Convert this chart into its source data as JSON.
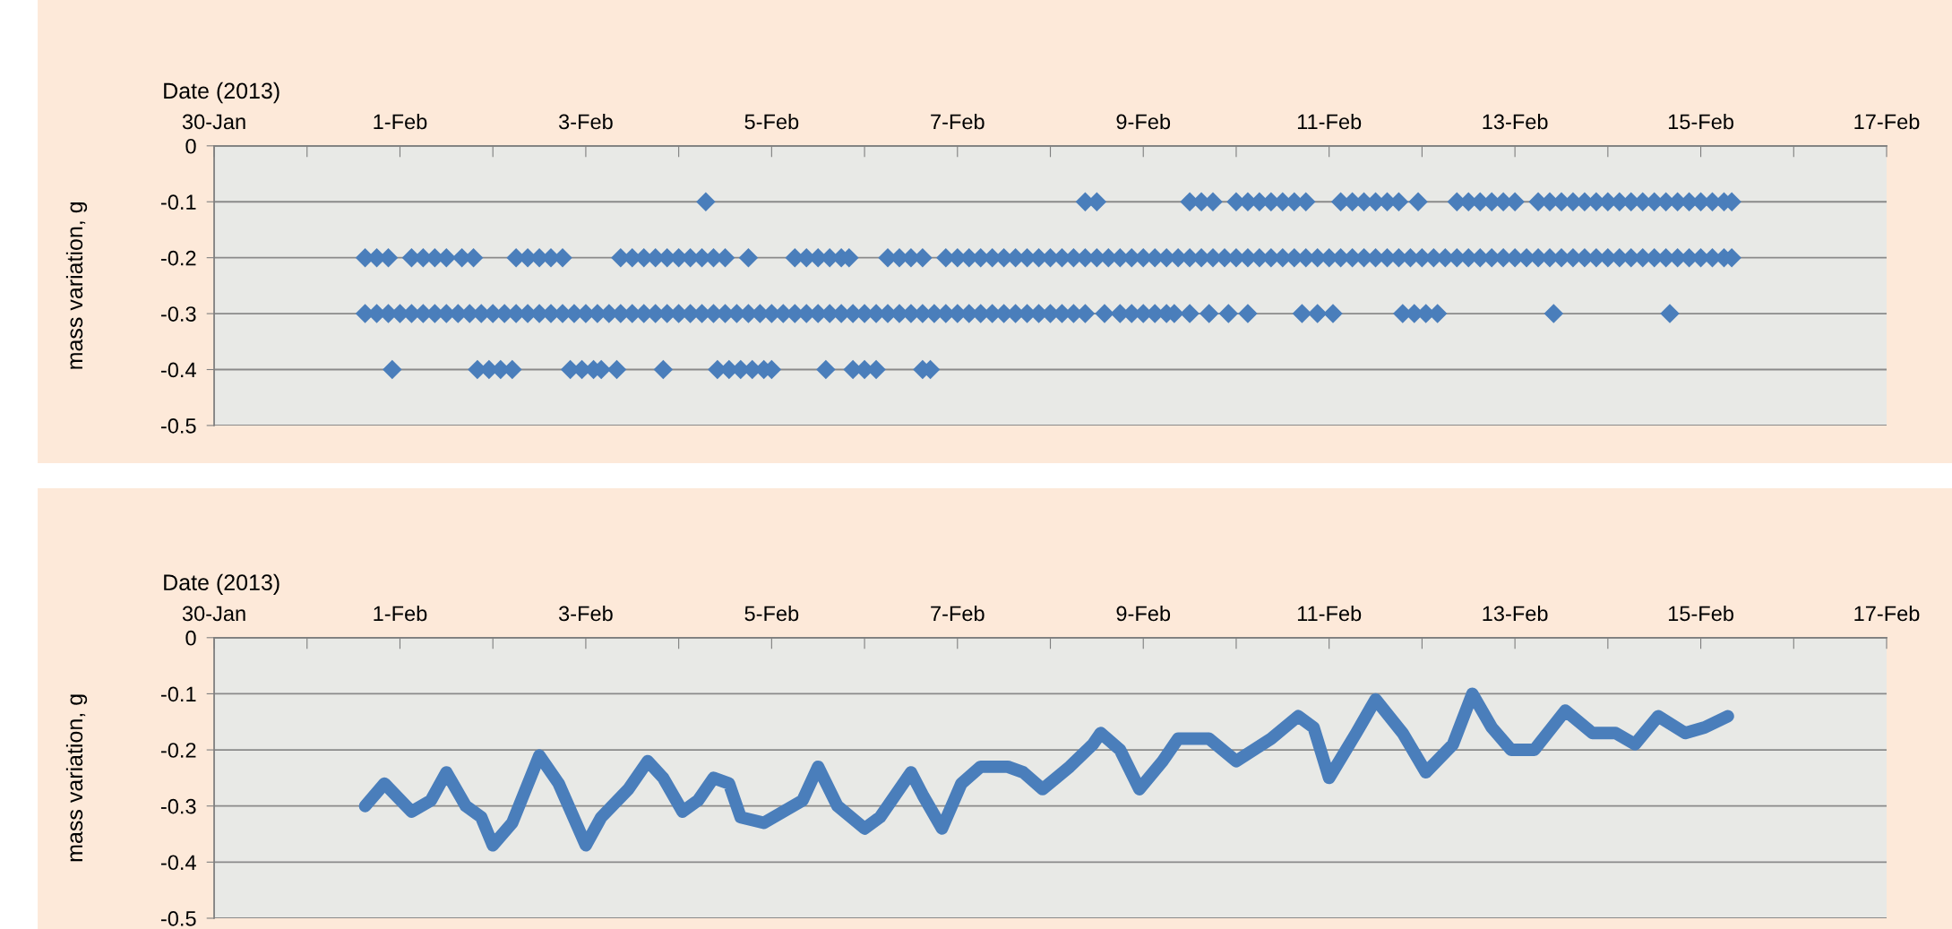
{
  "chart_data": [
    {
      "type": "scatter",
      "xlabel": "Date (2013)",
      "ylabel": "mass variation, g",
      "marker": "diamond",
      "grid": "y",
      "xlim": [
        "2013-01-30",
        "2013-02-17"
      ],
      "ylim": [
        -0.5,
        0
      ],
      "yticks": [
        0,
        -0.1,
        -0.2,
        -0.3,
        -0.4,
        -0.5
      ],
      "xticks": [
        {
          "value": "2013-01-30",
          "label": "30-Jan"
        },
        {
          "value": "2013-01-31",
          "label": null
        },
        {
          "value": "2013-02-01",
          "label": "1-Feb"
        },
        {
          "value": "2013-02-02",
          "label": null
        },
        {
          "value": "2013-02-03",
          "label": "3-Feb"
        },
        {
          "value": "2013-02-04",
          "label": null
        },
        {
          "value": "2013-02-05",
          "label": "5-Feb"
        },
        {
          "value": "2013-02-06",
          "label": null
        },
        {
          "value": "2013-02-07",
          "label": "7-Feb"
        },
        {
          "value": "2013-02-08",
          "label": null
        },
        {
          "value": "2013-02-09",
          "label": "9-Feb"
        },
        {
          "value": "2013-02-10",
          "label": null
        },
        {
          "value": "2013-02-11",
          "label": "11-Feb"
        },
        {
          "value": "2013-02-12",
          "label": null
        },
        {
          "value": "2013-02-13",
          "label": "13-Feb"
        },
        {
          "value": "2013-02-14",
          "label": null
        },
        {
          "value": "2013-02-15",
          "label": "15-Feb"
        },
        {
          "value": "2013-02-16",
          "label": null
        },
        {
          "value": "2013-02-17",
          "label": "17-Feb"
        }
      ],
      "series": [
        {
          "color": "#4a7ebb",
          "x": [
            "2013-01-31T15:00",
            "2013-01-31T18:00",
            "2013-01-31T21:00",
            "2013-02-01T00:00",
            "2013-02-01T03:00",
            "2013-02-01T06:00",
            "2013-02-01T09:00",
            "2013-02-01T12:00",
            "2013-02-01T15:00",
            "2013-02-01T18:00",
            "2013-02-01T21:00",
            "2013-02-02T00:00",
            "2013-02-02T03:00",
            "2013-02-02T06:00",
            "2013-02-02T09:00",
            "2013-02-02T12:00",
            "2013-02-02T15:00",
            "2013-02-02T18:00",
            "2013-02-02T21:00",
            "2013-02-03T00:00",
            "2013-02-03T03:00",
            "2013-02-03T06:00",
            "2013-02-03T09:00",
            "2013-02-03T12:00",
            "2013-02-03T15:00",
            "2013-02-03T18:00",
            "2013-02-03T21:00",
            "2013-02-04T00:00",
            "2013-02-04T03:00",
            "2013-02-04T06:00",
            "2013-02-04T09:00",
            "2013-02-04T12:00",
            "2013-02-04T15:00",
            "2013-02-04T18:00",
            "2013-02-04T21:00",
            "2013-02-05T00:00",
            "2013-02-05T03:00",
            "2013-02-05T06:00",
            "2013-02-05T09:00",
            "2013-02-05T12:00",
            "2013-02-05T15:00",
            "2013-02-05T18:00",
            "2013-02-05T21:00",
            "2013-02-06T00:00",
            "2013-02-06T03:00",
            "2013-02-06T06:00",
            "2013-02-06T09:00",
            "2013-02-06T12:00",
            "2013-02-06T15:00",
            "2013-02-06T18:00",
            "2013-02-06T21:00",
            "2013-02-07T00:00",
            "2013-02-07T03:00",
            "2013-02-07T06:00",
            "2013-02-07T09:00",
            "2013-02-07T12:00",
            "2013-02-07T15:00",
            "2013-02-07T18:00",
            "2013-02-07T21:00",
            "2013-02-08T00:00",
            "2013-02-08T03:00",
            "2013-02-08T06:00",
            "2013-02-08T09:00",
            "2013-02-08T14:00",
            "2013-02-08T18:00",
            "2013-02-08T21:00",
            "2013-02-09T00:00",
            "2013-02-09T03:00",
            "2013-02-09T06:00",
            "2013-02-09T08:00",
            "2013-02-09T12:00",
            "2013-02-09T17:00",
            "2013-02-09T22:00",
            "2013-02-10T03:00",
            "2013-02-10T17:00",
            "2013-02-10T21:00",
            "2013-02-11T01:00",
            "2013-02-11T19:00",
            "2013-02-11T22:00",
            "2013-02-12T01:00",
            "2013-02-12T04:00",
            "2013-02-13T10:00",
            "2013-02-14T16:00"
          ],
          "values": [
            -0.3,
            -0.3,
            -0.3,
            -0.3,
            -0.3,
            -0.3,
            -0.3,
            -0.3,
            -0.3,
            -0.3,
            -0.3,
            -0.3,
            -0.3,
            -0.3,
            -0.3,
            -0.3,
            -0.3,
            -0.3,
            -0.3,
            -0.3,
            -0.3,
            -0.3,
            -0.3,
            -0.3,
            -0.3,
            -0.3,
            -0.3,
            -0.3,
            -0.3,
            -0.3,
            -0.3,
            -0.3,
            -0.3,
            -0.3,
            -0.3,
            -0.3,
            -0.3,
            -0.3,
            -0.3,
            -0.3,
            -0.3,
            -0.3,
            -0.3,
            -0.3,
            -0.3,
            -0.3,
            -0.3,
            -0.3,
            -0.3,
            -0.3,
            -0.3,
            -0.3,
            -0.3,
            -0.3,
            -0.3,
            -0.3,
            -0.3,
            -0.3,
            -0.3,
            -0.3,
            -0.3,
            -0.3,
            -0.3,
            -0.3,
            -0.3,
            -0.3,
            -0.3,
            -0.3,
            -0.3,
            -0.3,
            -0.3,
            -0.3,
            -0.3,
            -0.3,
            -0.3,
            -0.3,
            -0.3,
            -0.3,
            -0.3,
            -0.3,
            -0.3,
            -0.3,
            -0.3
          ]
        },
        {
          "color": "#4a7ebb",
          "x": [
            "2013-01-31T15:00",
            "2013-01-31T18:00",
            "2013-01-31T21:00",
            "2013-02-01T03:00",
            "2013-02-01T06:00",
            "2013-02-01T09:00",
            "2013-02-01T12:00",
            "2013-02-01T16:00",
            "2013-02-01T19:00",
            "2013-02-02T06:00",
            "2013-02-02T09:00",
            "2013-02-02T12:00",
            "2013-02-02T15:00",
            "2013-02-02T18:00",
            "2013-02-03T09:00",
            "2013-02-03T12:00",
            "2013-02-03T15:00",
            "2013-02-03T18:00",
            "2013-02-03T21:00",
            "2013-02-04T00:00",
            "2013-02-04T03:00",
            "2013-02-04T06:00",
            "2013-02-04T09:00",
            "2013-02-04T12:00",
            "2013-02-04T18:00",
            "2013-02-05T06:00",
            "2013-02-05T09:00",
            "2013-02-05T12:00",
            "2013-02-05T15:00",
            "2013-02-05T18:00",
            "2013-02-05T20:00",
            "2013-02-06T06:00",
            "2013-02-06T09:00",
            "2013-02-06T12:00",
            "2013-02-06T15:00",
            "2013-02-06T21:00",
            "2013-02-07T00:00",
            "2013-02-07T03:00",
            "2013-02-07T06:00",
            "2013-02-07T09:00",
            "2013-02-07T12:00",
            "2013-02-07T15:00",
            "2013-02-07T18:00",
            "2013-02-07T21:00",
            "2013-02-08T00:00",
            "2013-02-08T03:00",
            "2013-02-08T06:00",
            "2013-02-08T09:00",
            "2013-02-08T12:00",
            "2013-02-08T15:00",
            "2013-02-08T18:00",
            "2013-02-08T21:00",
            "2013-02-09T00:00",
            "2013-02-09T03:00",
            "2013-02-09T06:00",
            "2013-02-09T09:00",
            "2013-02-09T12:00",
            "2013-02-09T15:00",
            "2013-02-09T18:00",
            "2013-02-09T21:00",
            "2013-02-10T00:00",
            "2013-02-10T03:00",
            "2013-02-10T06:00",
            "2013-02-10T09:00",
            "2013-02-10T12:00",
            "2013-02-10T15:00",
            "2013-02-10T18:00",
            "2013-02-10T21:00",
            "2013-02-11T00:00",
            "2013-02-11T03:00",
            "2013-02-11T06:00",
            "2013-02-11T09:00",
            "2013-02-11T12:00",
            "2013-02-11T15:00",
            "2013-02-11T18:00",
            "2013-02-11T21:00",
            "2013-02-12T00:00",
            "2013-02-12T03:00",
            "2013-02-12T06:00",
            "2013-02-12T09:00",
            "2013-02-12T12:00",
            "2013-02-12T15:00",
            "2013-02-12T18:00",
            "2013-02-12T21:00",
            "2013-02-13T00:00",
            "2013-02-13T03:00",
            "2013-02-13T06:00",
            "2013-02-13T09:00",
            "2013-02-13T12:00",
            "2013-02-13T15:00",
            "2013-02-13T18:00",
            "2013-02-13T21:00",
            "2013-02-14T00:00",
            "2013-02-14T03:00",
            "2013-02-14T06:00",
            "2013-02-14T09:00",
            "2013-02-14T12:00",
            "2013-02-14T15:00",
            "2013-02-14T18:00",
            "2013-02-14T21:00",
            "2013-02-15T00:00",
            "2013-02-15T03:00",
            "2013-02-15T06:00",
            "2013-02-15T08:00"
          ],
          "values": [
            -0.2,
            -0.2,
            -0.2,
            -0.2,
            -0.2,
            -0.2,
            -0.2,
            -0.2,
            -0.2,
            -0.2,
            -0.2,
            -0.2,
            -0.2,
            -0.2,
            -0.2,
            -0.2,
            -0.2,
            -0.2,
            -0.2,
            -0.2,
            -0.2,
            -0.2,
            -0.2,
            -0.2,
            -0.2,
            -0.2,
            -0.2,
            -0.2,
            -0.2,
            -0.2,
            -0.2,
            -0.2,
            -0.2,
            -0.2,
            -0.2,
            -0.2,
            -0.2,
            -0.2,
            -0.2,
            -0.2,
            -0.2,
            -0.2,
            -0.2,
            -0.2,
            -0.2,
            -0.2,
            -0.2,
            -0.2,
            -0.2,
            -0.2,
            -0.2,
            -0.2,
            -0.2,
            -0.2,
            -0.2,
            -0.2,
            -0.2,
            -0.2,
            -0.2,
            -0.2,
            -0.2,
            -0.2,
            -0.2,
            -0.2,
            -0.2,
            -0.2,
            -0.2,
            -0.2,
            -0.2,
            -0.2,
            -0.2,
            -0.2,
            -0.2,
            -0.2,
            -0.2,
            -0.2,
            -0.2,
            -0.2,
            -0.2,
            -0.2,
            -0.2,
            -0.2,
            -0.2,
            -0.2,
            -0.2,
            -0.2,
            -0.2,
            -0.2,
            -0.2,
            -0.2,
            -0.2,
            -0.2,
            -0.2,
            -0.2,
            -0.2,
            -0.2,
            -0.2,
            -0.2,
            -0.2,
            -0.2,
            -0.2,
            -0.2,
            -0.2,
            -0.2
          ]
        },
        {
          "color": "#4a7ebb",
          "x": [
            "2013-02-04T07:00",
            "2013-02-08T09:00",
            "2013-02-08T12:00",
            "2013-02-09T12:00",
            "2013-02-09T15:00",
            "2013-02-09T18:00",
            "2013-02-10T00:00",
            "2013-02-10T03:00",
            "2013-02-10T06:00",
            "2013-02-10T09:00",
            "2013-02-10T12:00",
            "2013-02-10T15:00",
            "2013-02-10T18:00",
            "2013-02-11T03:00",
            "2013-02-11T06:00",
            "2013-02-11T09:00",
            "2013-02-11T12:00",
            "2013-02-11T15:00",
            "2013-02-11T18:00",
            "2013-02-11T23:00",
            "2013-02-12T09:00",
            "2013-02-12T12:00",
            "2013-02-12T15:00",
            "2013-02-12T18:00",
            "2013-02-12T21:00",
            "2013-02-13T00:00",
            "2013-02-13T06:00",
            "2013-02-13T09:00",
            "2013-02-13T12:00",
            "2013-02-13T15:00",
            "2013-02-13T18:00",
            "2013-02-13T21:00",
            "2013-02-14T00:00",
            "2013-02-14T03:00",
            "2013-02-14T06:00",
            "2013-02-14T09:00",
            "2013-02-14T12:00",
            "2013-02-14T15:00",
            "2013-02-14T18:00",
            "2013-02-14T21:00",
            "2013-02-15T00:00",
            "2013-02-15T03:00",
            "2013-02-15T06:00",
            "2013-02-15T08:00"
          ],
          "values": [
            -0.1,
            -0.1,
            -0.1,
            -0.1,
            -0.1,
            -0.1,
            -0.1,
            -0.1,
            -0.1,
            -0.1,
            -0.1,
            -0.1,
            -0.1,
            -0.1,
            -0.1,
            -0.1,
            -0.1,
            -0.1,
            -0.1,
            -0.1,
            -0.1,
            -0.1,
            -0.1,
            -0.1,
            -0.1,
            -0.1,
            -0.1,
            -0.1,
            -0.1,
            -0.1,
            -0.1,
            -0.1,
            -0.1,
            -0.1,
            -0.1,
            -0.1,
            -0.1,
            -0.1,
            -0.1,
            -0.1,
            -0.1,
            -0.1,
            -0.1,
            -0.1
          ]
        },
        {
          "color": "#4a7ebb",
          "x": [
            "2013-01-31T22:00",
            "2013-02-01T20:00",
            "2013-02-01T23:00",
            "2013-02-02T02:00",
            "2013-02-02T05:00",
            "2013-02-02T20:00",
            "2013-02-02T23:00",
            "2013-02-03T02:00",
            "2013-02-03T04:00",
            "2013-02-03T08:00",
            "2013-02-03T20:00",
            "2013-02-04T10:00",
            "2013-02-04T13:00",
            "2013-02-04T16:00",
            "2013-02-04T19:00",
            "2013-02-04T22:00",
            "2013-02-05T00:00",
            "2013-02-05T14:00",
            "2013-02-05T21:00",
            "2013-02-06T00:00",
            "2013-02-06T03:00",
            "2013-02-06T15:00",
            "2013-02-06T17:00"
          ],
          "values": [
            -0.4,
            -0.4,
            -0.4,
            -0.4,
            -0.4,
            -0.4,
            -0.4,
            -0.4,
            -0.4,
            -0.4,
            -0.4,
            -0.4,
            -0.4,
            -0.4,
            -0.4,
            -0.4,
            -0.4,
            -0.4,
            -0.4,
            -0.4,
            -0.4,
            -0.4,
            -0.4
          ]
        }
      ]
    },
    {
      "type": "line",
      "xlabel": "Date (2013)",
      "ylabel": "mass variation, g",
      "grid": "y",
      "xlim": [
        "2013-01-30",
        "2013-02-17"
      ],
      "ylim": [
        -0.5,
        0
      ],
      "yticks": [
        0,
        -0.1,
        -0.2,
        -0.3,
        -0.4,
        -0.5
      ],
      "xticks": [
        {
          "value": "2013-01-30",
          "label": "30-Jan"
        },
        {
          "value": "2013-01-31",
          "label": null
        },
        {
          "value": "2013-02-01",
          "label": "1-Feb"
        },
        {
          "value": "2013-02-02",
          "label": null
        },
        {
          "value": "2013-02-03",
          "label": "3-Feb"
        },
        {
          "value": "2013-02-04",
          "label": null
        },
        {
          "value": "2013-02-05",
          "label": "5-Feb"
        },
        {
          "value": "2013-02-06",
          "label": null
        },
        {
          "value": "2013-02-07",
          "label": "7-Feb"
        },
        {
          "value": "2013-02-08",
          "label": null
        },
        {
          "value": "2013-02-09",
          "label": "9-Feb"
        },
        {
          "value": "2013-02-10",
          "label": null
        },
        {
          "value": "2013-02-11",
          "label": "11-Feb"
        },
        {
          "value": "2013-02-12",
          "label": null
        },
        {
          "value": "2013-02-13",
          "label": "13-Feb"
        },
        {
          "value": "2013-02-14",
          "label": null
        },
        {
          "value": "2013-02-15",
          "label": "15-Feb"
        },
        {
          "value": "2013-02-16",
          "label": null
        },
        {
          "value": "2013-02-17",
          "label": "17-Feb"
        }
      ],
      "series": [
        {
          "color": "#4a7ebb",
          "x": [
            "2013-01-31T15:00",
            "2013-01-31T20:00",
            "2013-02-01T03:00",
            "2013-02-01T08:00",
            "2013-02-01T12:00",
            "2013-02-01T17:00",
            "2013-02-01T21:00",
            "2013-02-02T00:00",
            "2013-02-02T05:00",
            "2013-02-02T12:00",
            "2013-02-02T17:00",
            "2013-02-03T00:00",
            "2013-02-03T04:00",
            "2013-02-03T11:00",
            "2013-02-03T16:00",
            "2013-02-03T20:00",
            "2013-02-04T01:00",
            "2013-02-04T05:00",
            "2013-02-04T09:00",
            "2013-02-04T13:00",
            "2013-02-04T16:00",
            "2013-02-04T22:00",
            "2013-02-05T08:00",
            "2013-02-05T12:00",
            "2013-02-05T17:00",
            "2013-02-06T00:00",
            "2013-02-06T04:00",
            "2013-02-06T12:00",
            "2013-02-06T15:00",
            "2013-02-06T20:00",
            "2013-02-07T01:00",
            "2013-02-07T06:00",
            "2013-02-07T13:00",
            "2013-02-07T17:00",
            "2013-02-07T22:00",
            "2013-02-08T05:00",
            "2013-02-08T11:00",
            "2013-02-08T13:00",
            "2013-02-08T18:00",
            "2013-02-08T23:00",
            "2013-02-09T05:00",
            "2013-02-09T09:00",
            "2013-02-09T17:00",
            "2013-02-10T00:00",
            "2013-02-10T09:00",
            "2013-02-10T16:00",
            "2013-02-10T20:00",
            "2013-02-11T00:00",
            "2013-02-11T07:00",
            "2013-02-11T12:00",
            "2013-02-11T19:00",
            "2013-02-12T01:00",
            "2013-02-12T08:00",
            "2013-02-12T13:00",
            "2013-02-12T18:00",
            "2013-02-12T23:00",
            "2013-02-13T05:00",
            "2013-02-13T13:00",
            "2013-02-13T20:00",
            "2013-02-14T02:00",
            "2013-02-14T07:00",
            "2013-02-14T13:00",
            "2013-02-14T20:00",
            "2013-02-15T01:00",
            "2013-02-15T07:00"
          ],
          "values": [
            -0.3,
            -0.26,
            -0.31,
            -0.29,
            -0.24,
            -0.3,
            -0.32,
            -0.37,
            -0.33,
            -0.21,
            -0.26,
            -0.37,
            -0.32,
            -0.27,
            -0.22,
            -0.25,
            -0.31,
            -0.29,
            -0.25,
            -0.26,
            -0.32,
            -0.33,
            -0.29,
            -0.23,
            -0.3,
            -0.34,
            -0.32,
            -0.24,
            -0.28,
            -0.34,
            -0.26,
            -0.23,
            -0.23,
            -0.24,
            -0.27,
            -0.23,
            -0.19,
            -0.17,
            -0.2,
            -0.27,
            -0.22,
            -0.18,
            -0.18,
            -0.22,
            -0.18,
            -0.14,
            -0.16,
            -0.25,
            -0.17,
            -0.11,
            -0.17,
            -0.24,
            -0.19,
            -0.1,
            -0.16,
            -0.2,
            -0.2,
            -0.13,
            -0.17,
            -0.17,
            -0.19,
            -0.14,
            -0.17,
            -0.16,
            -0.14
          ]
        }
      ]
    }
  ]
}
